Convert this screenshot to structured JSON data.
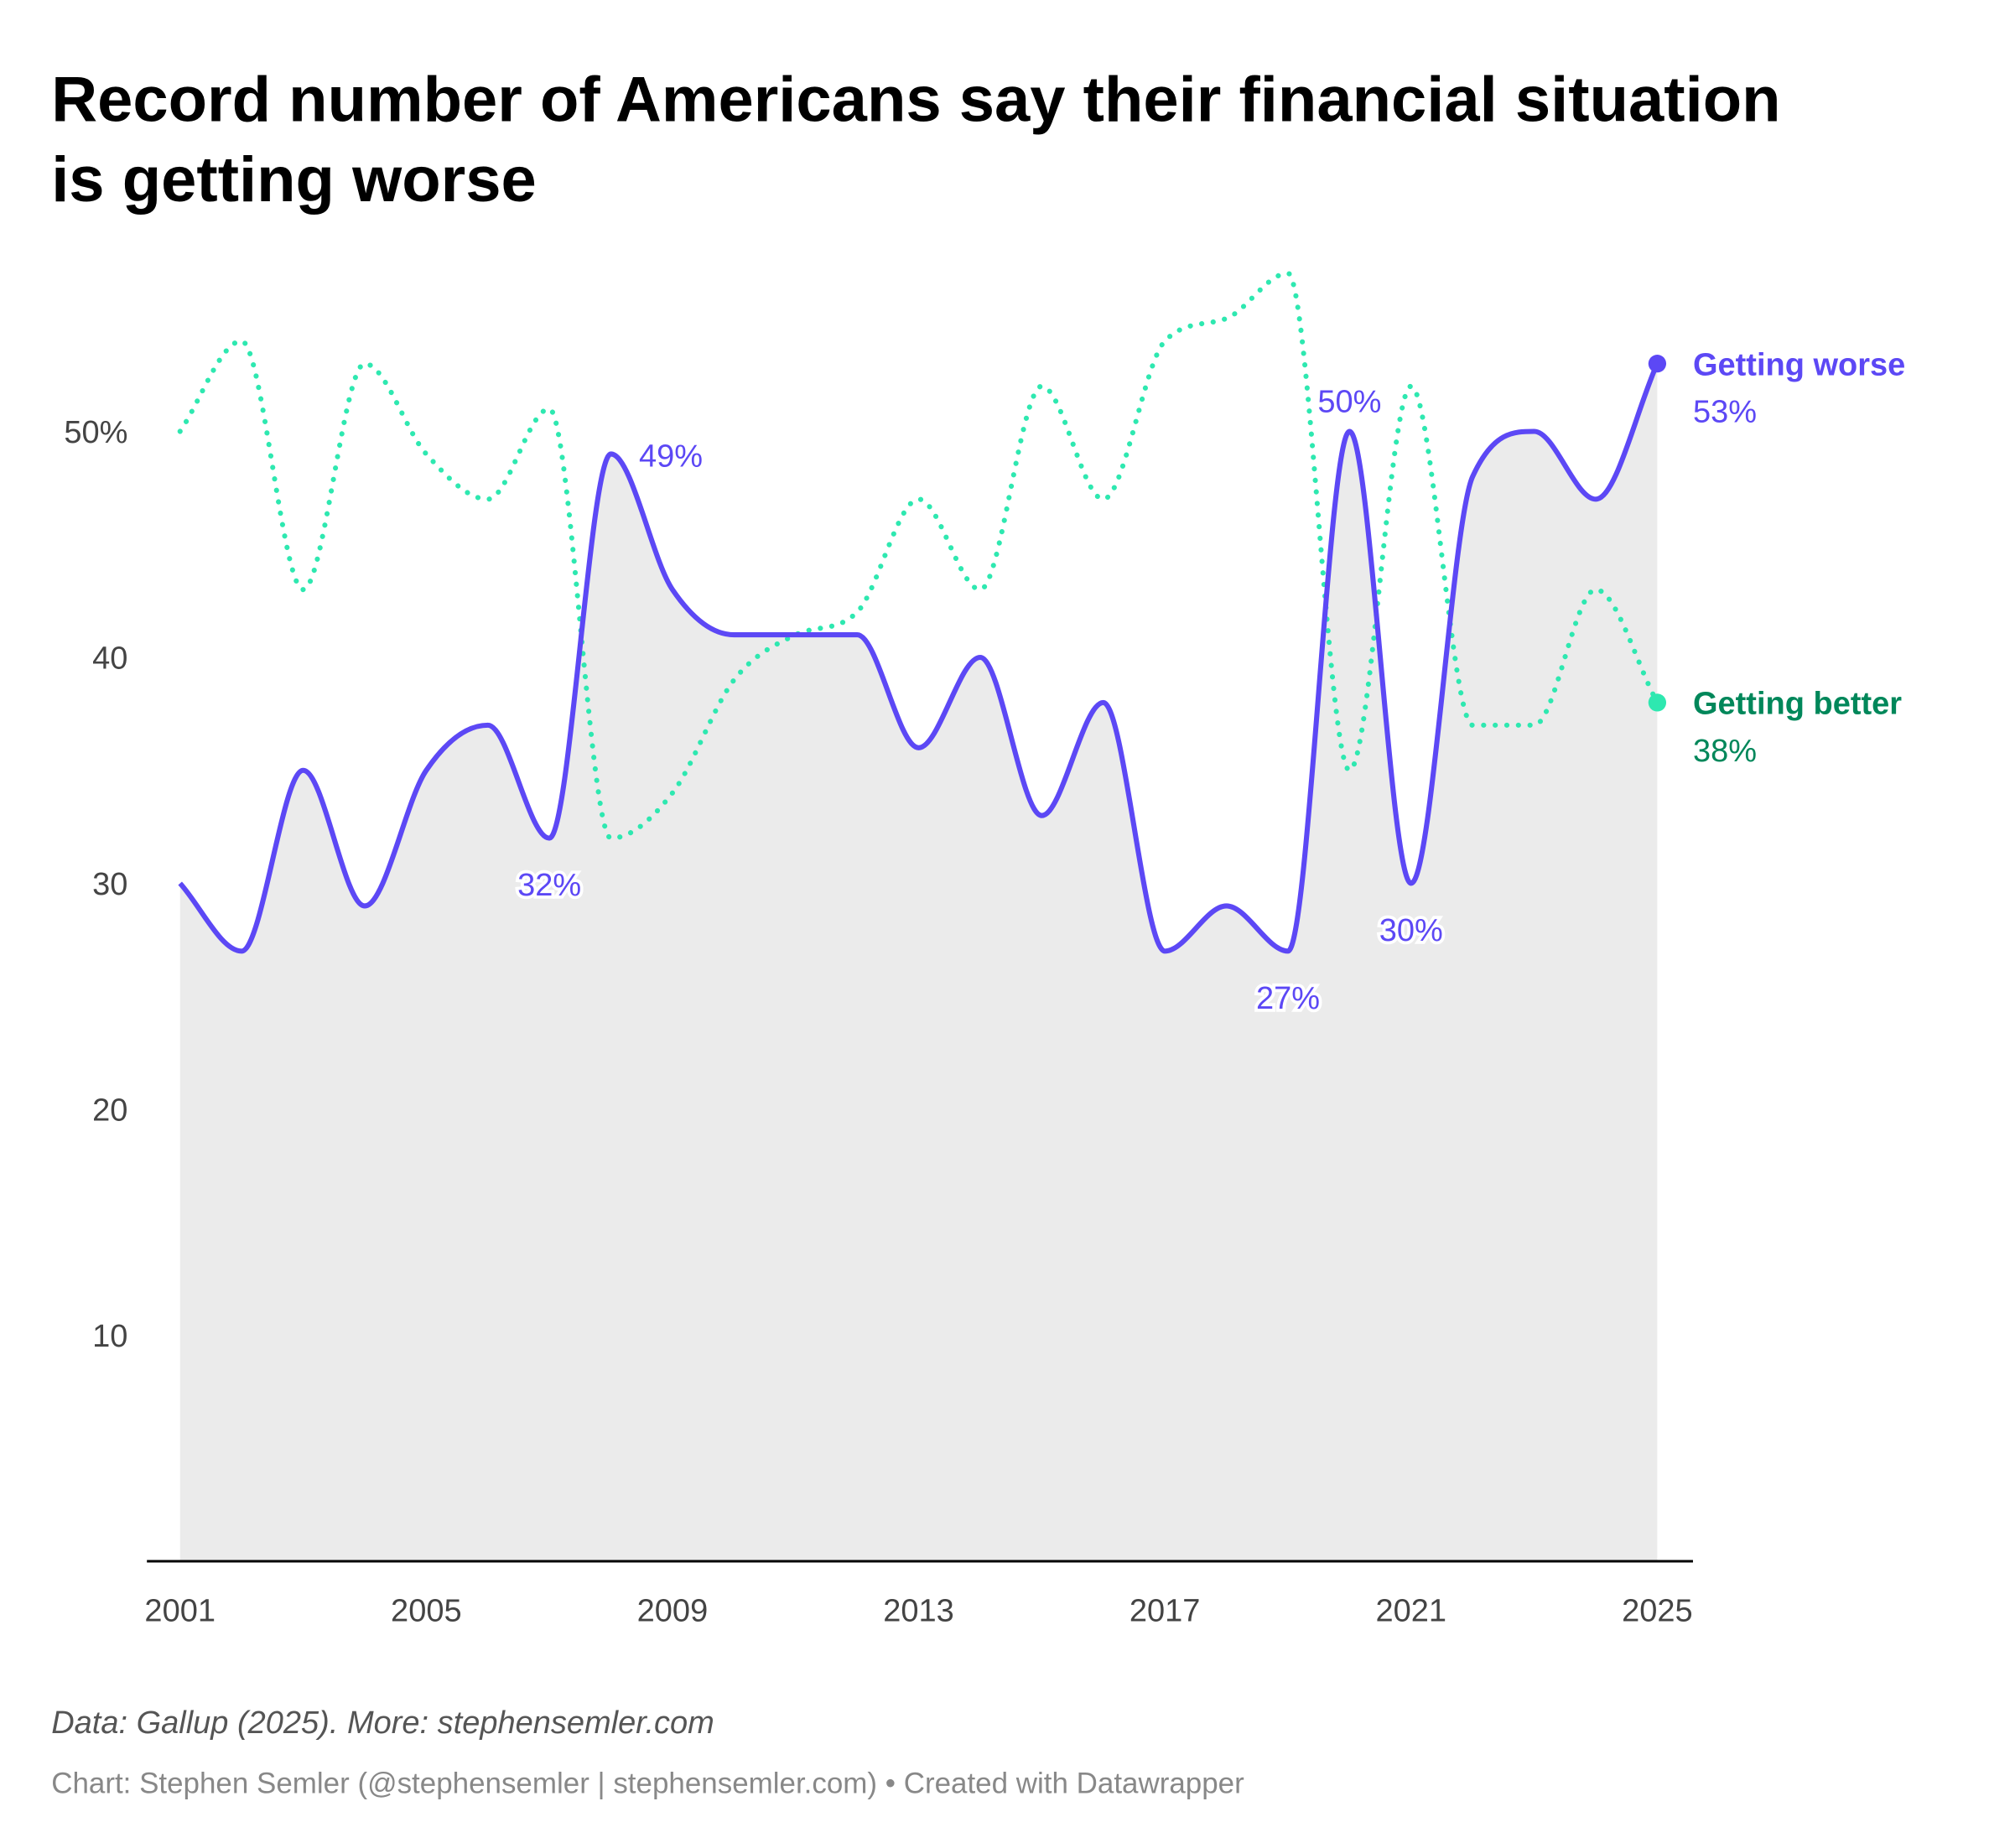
{
  "chart_data": {
    "type": "line",
    "title_lines": [
      "Record number of Americans say their financial situation",
      "is getting worse"
    ],
    "x": [
      2001,
      2002,
      2003,
      2004,
      2005,
      2006,
      2007,
      2008,
      2009,
      2010,
      2011,
      2012,
      2013,
      2014,
      2015,
      2016,
      2017,
      2018,
      2019,
      2020,
      2021,
      2022,
      2023,
      2024,
      2025
    ],
    "series": [
      {
        "name": "Getting worse",
        "color": "#5c48f5",
        "label_color": "#5c48f5",
        "end_label": "53%",
        "values": [
          30,
          27,
          35,
          29,
          35,
          37,
          32,
          49,
          43,
          41,
          41,
          41,
          36,
          40,
          33,
          38,
          27,
          29,
          27,
          50,
          30,
          48,
          50,
          47,
          53
        ]
      },
      {
        "name": "Getting better",
        "color": "#2ee8b0",
        "label_color": "#00875a",
        "end_label": "38%",
        "values": [
          50,
          54,
          43,
          53,
          49,
          47,
          51,
          32,
          34,
          39,
          41,
          42,
          47,
          43,
          52,
          47,
          54,
          55,
          57,
          35,
          52,
          37,
          37,
          43,
          38
        ]
      }
    ],
    "annotations": [
      {
        "year": 2007,
        "value": 32,
        "text": "32%"
      },
      {
        "year": 2008,
        "value": 49,
        "text": "49%"
      },
      {
        "year": 2019,
        "value": 27,
        "text": "27%"
      },
      {
        "year": 2020,
        "value": 50,
        "text": "50%"
      },
      {
        "year": 2021,
        "value": 30,
        "text": "30%"
      }
    ],
    "ylim": [
      0,
      60
    ],
    "yticks": [
      {
        "v": 10,
        "t": "10"
      },
      {
        "v": 20,
        "t": "20"
      },
      {
        "v": 30,
        "t": "30"
      },
      {
        "v": 40,
        "t": "40"
      },
      {
        "v": 50,
        "t": "50%"
      }
    ],
    "xticks": [
      {
        "v": 2001,
        "t": "2001"
      },
      {
        "v": 2005,
        "t": "2005"
      },
      {
        "v": 2009,
        "t": "2009"
      },
      {
        "v": 2013,
        "t": "2013"
      },
      {
        "v": 2017,
        "t": "2017"
      },
      {
        "v": 2021,
        "t": "2021"
      },
      {
        "v": 2025,
        "t": "2025"
      }
    ],
    "area_color": "#ebebeb"
  },
  "footer": {
    "source": "Data: Gallup (2025). More: stephensemler.com",
    "credit": "Chart: Stephen Semler (@stephensemler | stephensemler.com) • Created with Datawrapper"
  }
}
